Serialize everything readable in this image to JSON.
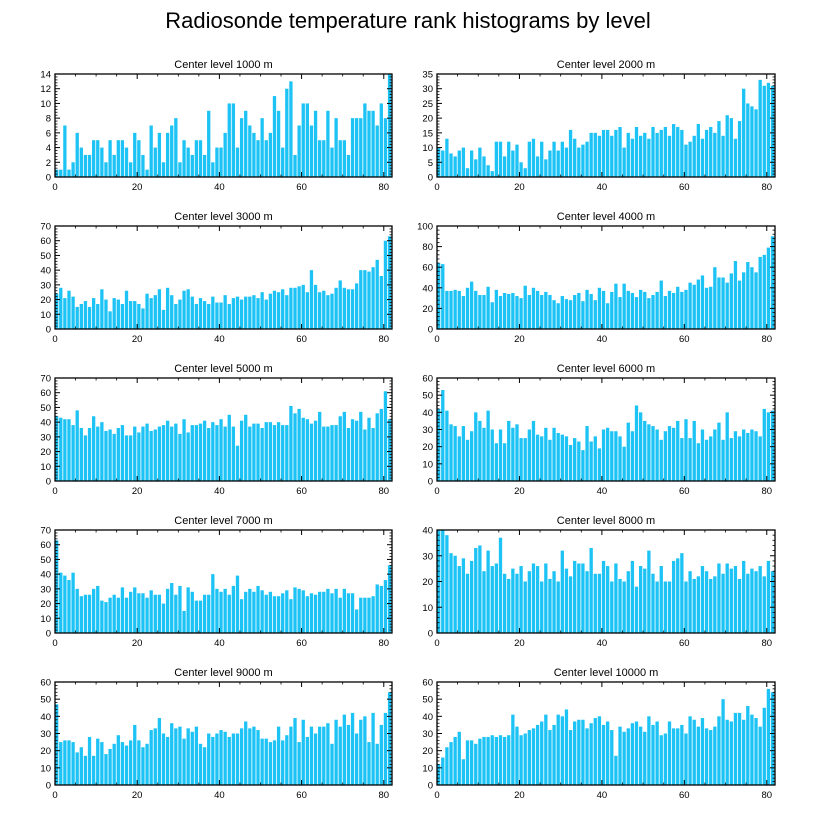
{
  "figure": {
    "title": "Radiosonde temperature rank histograms by level",
    "bar_color": "#1EC3F5"
  },
  "chart_data": [
    {
      "type": "bar",
      "title": "Center level 1000 m",
      "xlim": [
        0,
        82
      ],
      "ylim": [
        0,
        14
      ],
      "yticks": [
        0,
        2,
        4,
        6,
        8,
        10,
        12,
        14
      ],
      "xticks": [
        0,
        20,
        40,
        60,
        80
      ],
      "values": [
        1,
        1,
        7,
        1,
        2,
        6,
        4,
        3,
        3,
        5,
        5,
        4,
        2,
        5,
        3,
        5,
        5,
        4,
        2,
        6,
        5,
        3,
        1,
        7,
        4,
        6,
        2,
        6,
        7,
        8,
        2,
        5,
        4,
        3,
        5,
        5,
        3,
        9,
        2,
        4,
        4,
        6,
        10,
        10,
        4,
        8,
        9,
        7,
        6,
        5,
        8,
        5,
        6,
        11,
        9,
        4,
        12,
        13,
        3,
        7,
        10,
        10,
        7,
        9,
        5,
        5,
        9,
        4,
        8,
        5,
        5,
        3,
        8,
        8,
        8,
        10,
        9,
        9,
        7,
        10,
        8,
        14
      ]
    },
    {
      "type": "bar",
      "title": "Center level 2000 m",
      "xlim": [
        0,
        82
      ],
      "ylim": [
        0,
        35
      ],
      "yticks": [
        0,
        5,
        10,
        15,
        20,
        25,
        30,
        35
      ],
      "xticks": [
        0,
        20,
        40,
        60,
        80
      ],
      "values": [
        10,
        9,
        13,
        8,
        7,
        9,
        10,
        3,
        9,
        6,
        10,
        7,
        4,
        2,
        12,
        12,
        7,
        12,
        9,
        11,
        5,
        3,
        12,
        13,
        7,
        12,
        6,
        9,
        12,
        9,
        12,
        10,
        16,
        13,
        10,
        11,
        12,
        15,
        15,
        14,
        16,
        16,
        14,
        16,
        17,
        10,
        15,
        13,
        17,
        14,
        15,
        13,
        17,
        15,
        16,
        17,
        14,
        18,
        17,
        16,
        11,
        12,
        14,
        18,
        13,
        16,
        17,
        15,
        19,
        14,
        21,
        20,
        13,
        19,
        30,
        25,
        24,
        23,
        33,
        31,
        32,
        31
      ]
    },
    {
      "type": "bar",
      "title": "Center level 3000 m",
      "xlim": [
        0,
        82
      ],
      "ylim": [
        0,
        70
      ],
      "yticks": [
        0,
        10,
        20,
        30,
        40,
        50,
        60,
        70
      ],
      "xticks": [
        0,
        20,
        40,
        60,
        80
      ],
      "values": [
        24,
        28,
        21,
        26,
        22,
        15,
        17,
        19,
        15,
        21,
        17,
        27,
        20,
        12,
        21,
        20,
        17,
        26,
        19,
        19,
        17,
        14,
        24,
        21,
        23,
        27,
        13,
        28,
        23,
        17,
        20,
        26,
        27,
        22,
        17,
        21,
        19,
        17,
        22,
        18,
        18,
        23,
        17,
        21,
        22,
        20,
        22,
        22,
        23,
        21,
        25,
        20,
        24,
        26,
        25,
        27,
        23,
        28,
        28,
        29,
        30,
        25,
        40,
        30,
        25,
        26,
        23,
        24,
        28,
        33,
        28,
        27,
        27,
        31,
        40,
        40,
        39,
        42,
        47,
        36,
        60,
        63
      ]
    },
    {
      "type": "bar",
      "title": "Center level 4000 m",
      "xlim": [
        0,
        82
      ],
      "ylim": [
        0,
        100
      ],
      "yticks": [
        0,
        20,
        40,
        60,
        80,
        100
      ],
      "xticks": [
        0,
        20,
        40,
        60,
        80
      ],
      "values": [
        64,
        63,
        37,
        37,
        38,
        37,
        32,
        40,
        46,
        37,
        33,
        33,
        41,
        26,
        38,
        32,
        35,
        34,
        35,
        32,
        30,
        42,
        33,
        40,
        37,
        33,
        36,
        33,
        28,
        25,
        32,
        29,
        28,
        33,
        35,
        27,
        38,
        34,
        28,
        40,
        37,
        25,
        36,
        44,
        31,
        44,
        37,
        35,
        31,
        38,
        36,
        30,
        33,
        36,
        47,
        32,
        37,
        35,
        41,
        36,
        38,
        45,
        43,
        48,
        52,
        40,
        41,
        60,
        50,
        50,
        45,
        54,
        66,
        47,
        55,
        65,
        60,
        55,
        70,
        72,
        79,
        90
      ]
    },
    {
      "type": "bar",
      "title": "Center level 5000 m",
      "xlim": [
        0,
        82
      ],
      "ylim": [
        0,
        70
      ],
      "yticks": [
        0,
        10,
        20,
        30,
        40,
        50,
        60,
        70
      ],
      "xticks": [
        0,
        20,
        40,
        60,
        80
      ],
      "values": [
        44,
        43,
        42,
        42,
        38,
        48,
        36,
        31,
        36,
        44,
        37,
        40,
        34,
        35,
        32,
        36,
        38,
        31,
        31,
        37,
        33,
        37,
        39,
        34,
        35,
        37,
        38,
        41,
        37,
        39,
        32,
        42,
        33,
        38,
        38,
        39,
        41,
        36,
        40,
        38,
        42,
        37,
        45,
        37,
        24,
        41,
        45,
        37,
        39,
        39,
        36,
        40,
        40,
        38,
        40,
        38,
        38,
        51,
        46,
        49,
        43,
        42,
        39,
        41,
        47,
        37,
        37,
        38,
        38,
        44,
        47,
        36,
        42,
        41,
        47,
        35,
        43,
        36,
        46,
        49,
        61,
        42
      ]
    },
    {
      "type": "bar",
      "title": "Center level 6000 m",
      "xlim": [
        0,
        82
      ],
      "ylim": [
        0,
        60
      ],
      "yticks": [
        0,
        10,
        20,
        30,
        40,
        50,
        60
      ],
      "xticks": [
        0,
        20,
        40,
        60,
        80
      ],
      "values": [
        42,
        53,
        41,
        33,
        32,
        26,
        32,
        24,
        29,
        40,
        35,
        31,
        41,
        30,
        22,
        30,
        22,
        35,
        31,
        33,
        25,
        25,
        30,
        35,
        27,
        26,
        31,
        24,
        31,
        28,
        27,
        26,
        21,
        25,
        23,
        18,
        32,
        23,
        26,
        19,
        30,
        31,
        29,
        29,
        26,
        20,
        34,
        29,
        44,
        40,
        35,
        33,
        32,
        30,
        24,
        29,
        32,
        31,
        35,
        25,
        36,
        25,
        35,
        22,
        30,
        24,
        26,
        30,
        34,
        24,
        40,
        25,
        29,
        26,
        30,
        28,
        30,
        29,
        26,
        42,
        40,
        41
      ]
    },
    {
      "type": "bar",
      "title": "Center level 7000 m",
      "xlim": [
        0,
        82
      ],
      "ylim": [
        0,
        70
      ],
      "yticks": [
        0,
        10,
        20,
        30,
        40,
        50,
        60,
        70
      ],
      "xticks": [
        0,
        20,
        40,
        60,
        80
      ],
      "values": [
        63,
        41,
        39,
        36,
        41,
        30,
        25,
        26,
        26,
        30,
        32,
        22,
        21,
        24,
        26,
        24,
        31,
        24,
        28,
        31,
        27,
        27,
        24,
        29,
        26,
        26,
        20,
        30,
        34,
        26,
        32,
        15,
        31,
        28,
        22,
        22,
        26,
        26,
        40,
        30,
        28,
        30,
        26,
        32,
        39,
        23,
        28,
        30,
        28,
        32,
        29,
        26,
        28,
        25,
        25,
        27,
        29,
        23,
        31,
        30,
        29,
        25,
        27,
        26,
        28,
        28,
        30,
        27,
        30,
        24,
        30,
        27,
        27,
        16,
        24,
        24,
        24,
        25,
        33,
        32,
        36,
        46
      ]
    },
    {
      "type": "bar",
      "title": "Center level 8000 m",
      "xlim": [
        0,
        82
      ],
      "ylim": [
        0,
        40
      ],
      "yticks": [
        0,
        10,
        20,
        30,
        40
      ],
      "xticks": [
        0,
        20,
        40,
        60,
        80
      ],
      "values": [
        40,
        40,
        38,
        31,
        30,
        26,
        29,
        23,
        28,
        33,
        34,
        24,
        32,
        26,
        27,
        37,
        23,
        21,
        25,
        23,
        26,
        20,
        24,
        27,
        26,
        20,
        27,
        21,
        24,
        20,
        32,
        25,
        22,
        28,
        27,
        27,
        24,
        33,
        23,
        23,
        28,
        26,
        20,
        27,
        21,
        20,
        24,
        28,
        18,
        26,
        25,
        32,
        23,
        20,
        26,
        20,
        20,
        28,
        29,
        31,
        20,
        24,
        21,
        22,
        26,
        24,
        21,
        22,
        27,
        23,
        27,
        25,
        26,
        21,
        28,
        23,
        25,
        24,
        26,
        22,
        28,
        24
      ]
    },
    {
      "type": "bar",
      "title": "Center level 9000 m",
      "xlim": [
        0,
        82
      ],
      "ylim": [
        0,
        60
      ],
      "yticks": [
        0,
        10,
        20,
        30,
        40,
        50,
        60
      ],
      "xticks": [
        0,
        20,
        40,
        60,
        80
      ],
      "values": [
        47,
        25,
        26,
        26,
        25,
        19,
        22,
        17,
        28,
        17,
        27,
        25,
        18,
        21,
        24,
        29,
        25,
        23,
        26,
        35,
        26,
        22,
        24,
        32,
        33,
        39,
        30,
        28,
        36,
        33,
        34,
        27,
        33,
        31,
        34,
        24,
        22,
        30,
        28,
        30,
        32,
        31,
        28,
        30,
        30,
        33,
        37,
        33,
        34,
        32,
        27,
        27,
        25,
        26,
        34,
        26,
        29,
        34,
        39,
        25,
        38,
        28,
        34,
        30,
        34,
        34,
        36,
        24,
        38,
        34,
        41,
        35,
        42,
        30,
        38,
        40,
        25,
        42,
        24,
        35,
        42,
        54
      ]
    },
    {
      "type": "bar",
      "title": "Center level 10000 m",
      "xlim": [
        0,
        82
      ],
      "ylim": [
        0,
        60
      ],
      "yticks": [
        0,
        10,
        20,
        30,
        40,
        50,
        60
      ],
      "xticks": [
        0,
        20,
        40,
        60,
        80
      ],
      "values": [
        12,
        16,
        22,
        25,
        28,
        31,
        15,
        26,
        26,
        24,
        27,
        28,
        28,
        29,
        28,
        29,
        28,
        29,
        41,
        34,
        29,
        30,
        32,
        33,
        35,
        37,
        41,
        32,
        35,
        41,
        40,
        44,
        32,
        37,
        38,
        38,
        33,
        36,
        39,
        40,
        35,
        37,
        32,
        17,
        34,
        31,
        33,
        36,
        37,
        34,
        31,
        40,
        35,
        37,
        29,
        30,
        37,
        33,
        33,
        35,
        30,
        40,
        38,
        34,
        39,
        33,
        32,
        34,
        40,
        50,
        38,
        37,
        42,
        42,
        38,
        46,
        41,
        39,
        34,
        45,
        56,
        54
      ]
    }
  ]
}
